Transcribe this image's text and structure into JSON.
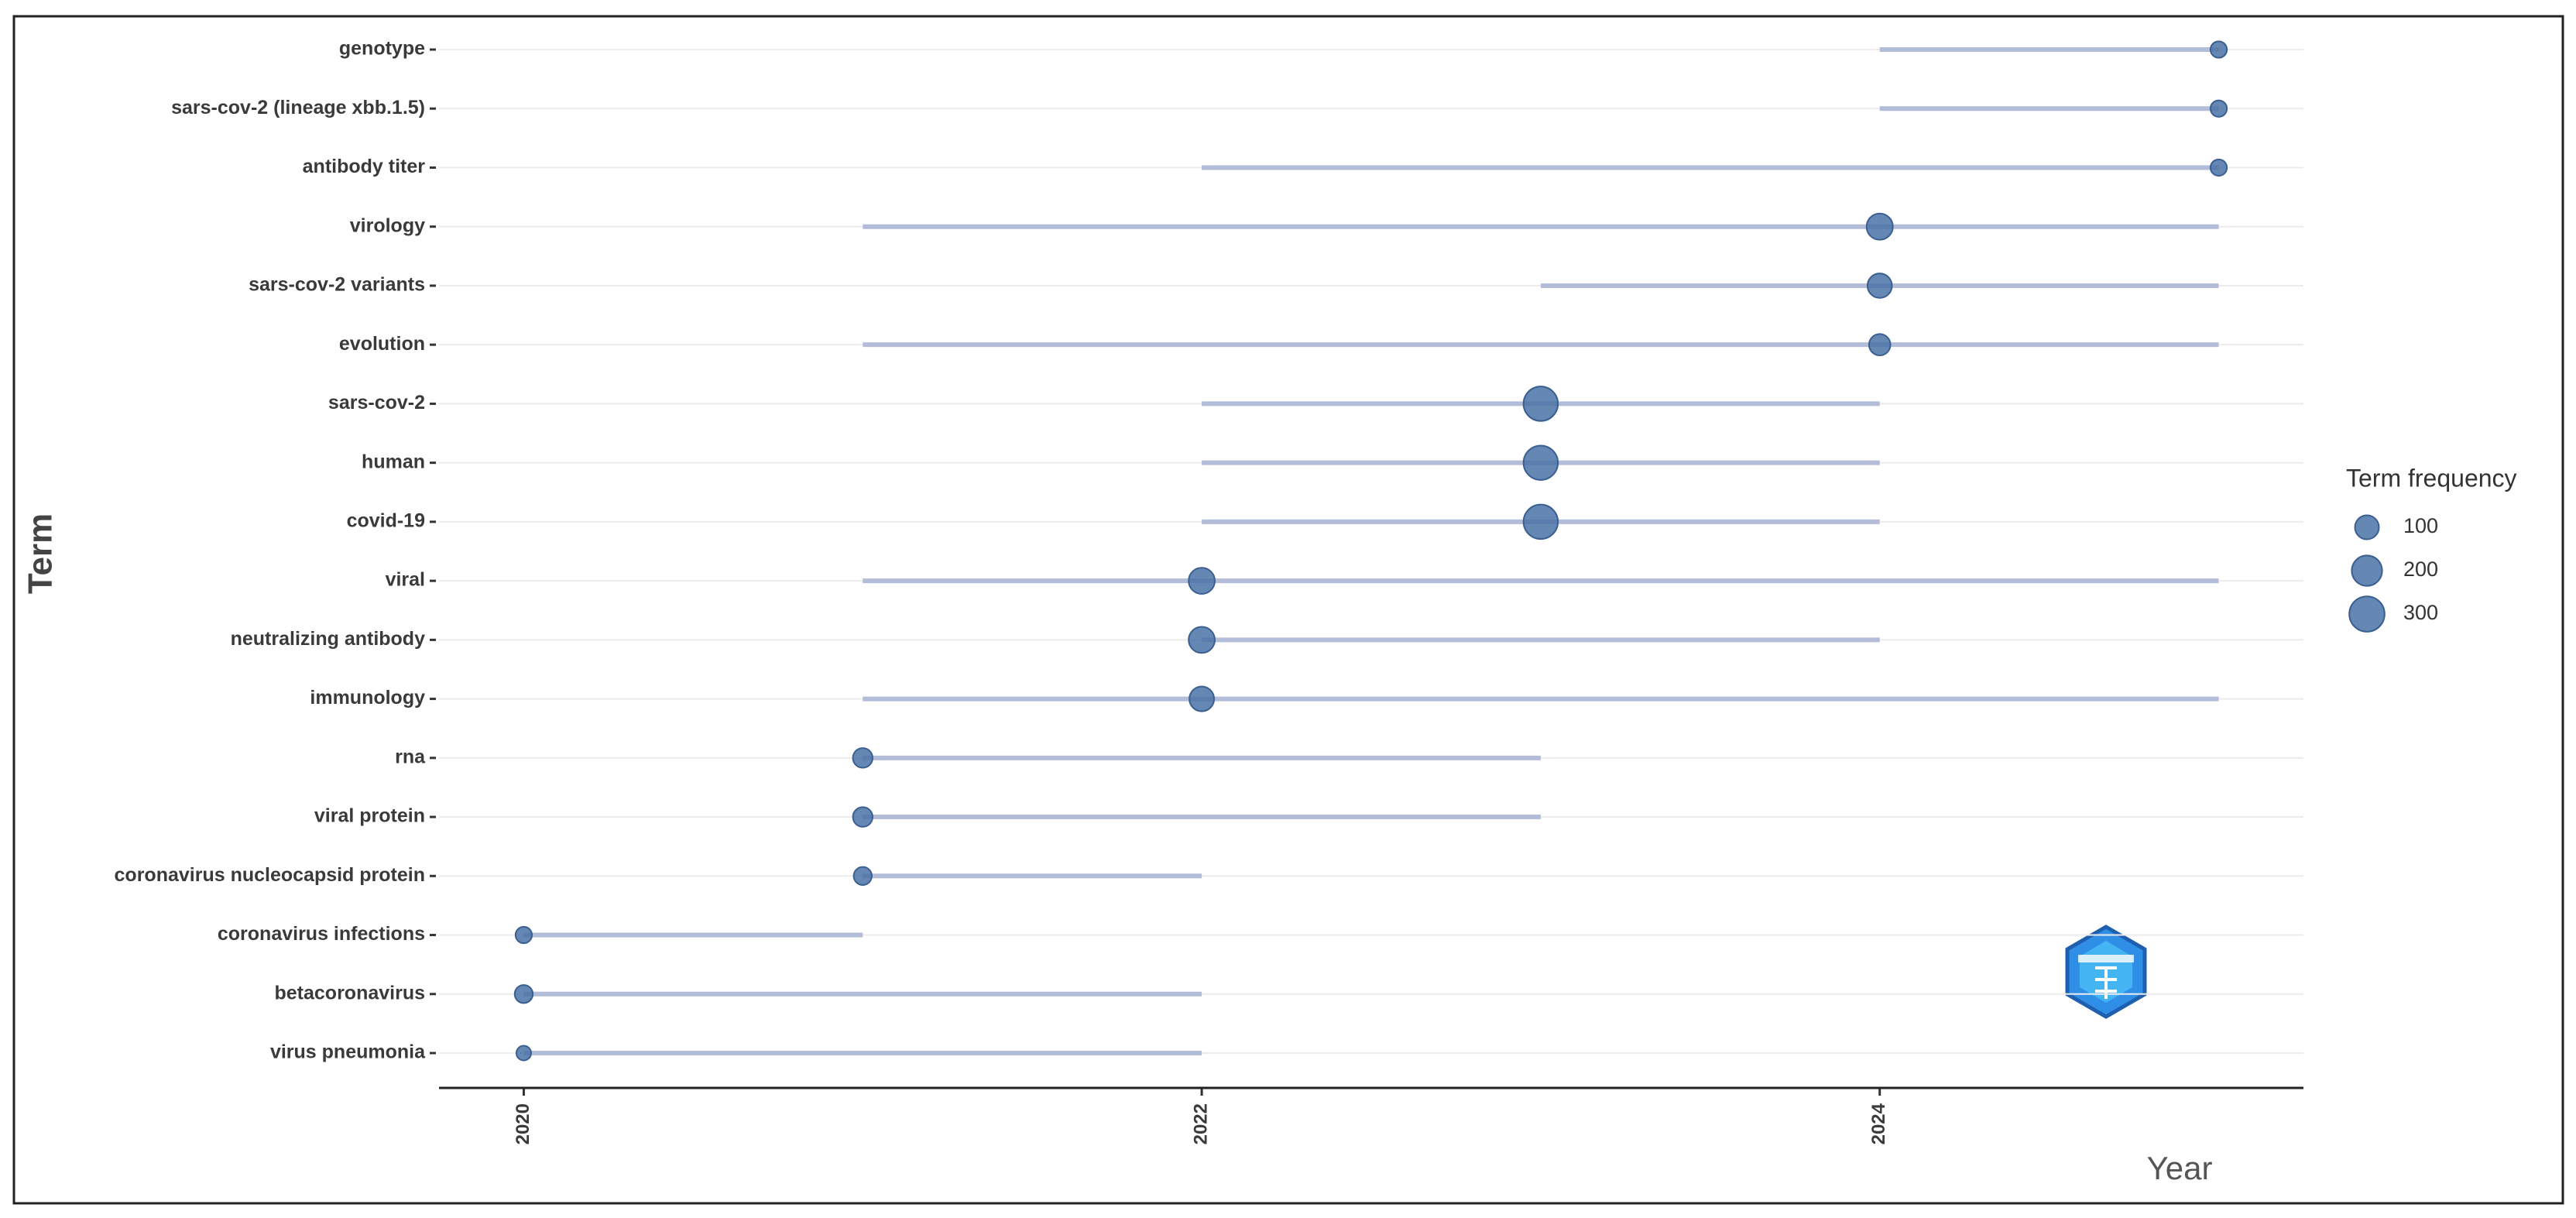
{
  "chart_data": {
    "type": "range",
    "xlabel": "Year",
    "ylabel": "Term",
    "categories": [
      "genotype",
      "sars-cov-2 (lineage xbb.1.5)",
      "antibody titer",
      "virology",
      "sars-cov-2 variants",
      "evolution",
      "sars-cov-2",
      "human",
      "covid-19",
      "viral",
      "neutralizing antibody",
      "immunology",
      "rna",
      "viral protein",
      "coronavirus nucleocapsid protein",
      "coronavirus infections",
      "betacoronavirus",
      "virus pneumonia"
    ],
    "start": [
      2024,
      2024,
      2022,
      2021,
      2023,
      2021,
      2022,
      2022,
      2022,
      2021,
      2022,
      2021,
      2021,
      2021,
      2021,
      2020,
      2020,
      2020
    ],
    "median": [
      2025,
      2025,
      2025,
      2024,
      2024,
      2024,
      2023,
      2023,
      2023,
      2022,
      2022,
      2022,
      2021,
      2021,
      2021,
      2020,
      2020,
      2020
    ],
    "end": [
      2025,
      2025,
      2025,
      2025,
      2025,
      2025,
      2024,
      2024,
      2024,
      2025,
      2024,
      2025,
      2023,
      2023,
      2022,
      2021,
      2022,
      2022
    ],
    "freq": [
      26,
      26,
      26,
      132,
      106,
      69,
      281,
      280,
      280,
      130,
      130,
      110,
      52,
      52,
      38,
      26,
      38,
      16
    ],
    "line_color": "#b3bcd8",
    "point_color": "#4a72a6",
    "xlim": [
      2019.75,
      2025.25
    ],
    "xticks": [
      2020,
      2022,
      2024
    ],
    "grid": true,
    "size_legend": {
      "title": "Term frequency",
      "values": [
        100,
        200,
        300
      ]
    }
  }
}
